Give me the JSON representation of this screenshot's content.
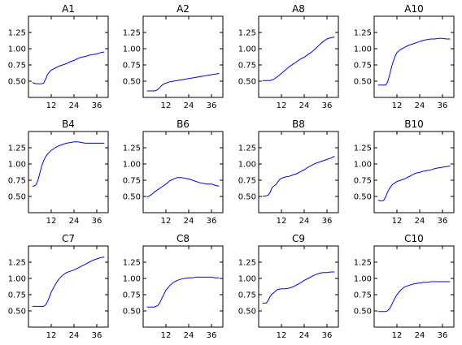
{
  "chart_data": [
    {
      "type": "line",
      "title": "A1",
      "xlim": [
        0,
        42
      ],
      "ylim": [
        0.25,
        1.5
      ],
      "xticks": [
        "12",
        "24",
        "36"
      ],
      "yticks": [
        "0.50",
        "0.75",
        "1.00",
        "1.25"
      ],
      "color": "#0000ff",
      "x": [
        2,
        4,
        6,
        7,
        8,
        9,
        10,
        11,
        12,
        14,
        16,
        18,
        20,
        22,
        24,
        26,
        28,
        30,
        32,
        34,
        36,
        38,
        40
      ],
      "y": [
        0.48,
        0.46,
        0.46,
        0.46,
        0.47,
        0.53,
        0.6,
        0.64,
        0.67,
        0.7,
        0.73,
        0.75,
        0.77,
        0.8,
        0.82,
        0.85,
        0.87,
        0.88,
        0.9,
        0.91,
        0.92,
        0.94,
        0.95
      ]
    },
    {
      "type": "line",
      "title": "A2",
      "xlim": [
        0,
        42
      ],
      "ylim": [
        0.25,
        1.5
      ],
      "xticks": [
        "12",
        "24",
        "36"
      ],
      "yticks": [
        "0.50",
        "0.75",
        "1.00",
        "1.25"
      ],
      "color": "#0000ff",
      "x": [
        2,
        4,
        6,
        7,
        8,
        9,
        10,
        11,
        12,
        14,
        16,
        18,
        20,
        22,
        24,
        26,
        28,
        30,
        32,
        34,
        36,
        38,
        40
      ],
      "y": [
        0.35,
        0.35,
        0.35,
        0.36,
        0.38,
        0.41,
        0.44,
        0.46,
        0.47,
        0.49,
        0.5,
        0.51,
        0.52,
        0.53,
        0.54,
        0.55,
        0.56,
        0.57,
        0.58,
        0.59,
        0.6,
        0.61,
        0.62
      ]
    },
    {
      "type": "line",
      "title": "A8",
      "xlim": [
        0,
        42
      ],
      "ylim": [
        0.25,
        1.5
      ],
      "xticks": [
        "12",
        "24",
        "36"
      ],
      "yticks": [
        "0.50",
        "0.75",
        "1.00",
        "1.25"
      ],
      "color": "#0000ff",
      "x": [
        2,
        4,
        6,
        8,
        10,
        12,
        14,
        16,
        18,
        20,
        22,
        24,
        26,
        28,
        30,
        32,
        34,
        36,
        38,
        40
      ],
      "y": [
        0.51,
        0.51,
        0.51,
        0.53,
        0.57,
        0.62,
        0.67,
        0.72,
        0.76,
        0.8,
        0.84,
        0.87,
        0.91,
        0.95,
        1.0,
        1.06,
        1.11,
        1.15,
        1.17,
        1.18
      ]
    },
    {
      "type": "line",
      "title": "A10",
      "xlim": [
        0,
        42
      ],
      "ylim": [
        0.25,
        1.5
      ],
      "xticks": [
        "12",
        "24",
        "36"
      ],
      "yticks": [
        "0.50",
        "0.75",
        "1.00",
        "1.25"
      ],
      "color": "#0000ff",
      "x": [
        2,
        4,
        6,
        7,
        8,
        9,
        10,
        11,
        12,
        14,
        16,
        18,
        20,
        22,
        24,
        26,
        28,
        30,
        32,
        34,
        36,
        38,
        40
      ],
      "y": [
        0.44,
        0.44,
        0.44,
        0.48,
        0.58,
        0.7,
        0.8,
        0.88,
        0.94,
        0.99,
        1.02,
        1.05,
        1.07,
        1.09,
        1.11,
        1.13,
        1.14,
        1.15,
        1.15,
        1.16,
        1.16,
        1.15,
        1.15
      ]
    },
    {
      "type": "line",
      "title": "B4",
      "xlim": [
        0,
        42
      ],
      "ylim": [
        0.25,
        1.5
      ],
      "xticks": [
        "12",
        "24",
        "36"
      ],
      "yticks": [
        "0.50",
        "0.75",
        "1.00",
        "1.25"
      ],
      "color": "#0000ff",
      "x": [
        2,
        3,
        4,
        5,
        6,
        7,
        8,
        9,
        10,
        12,
        14,
        16,
        18,
        20,
        22,
        24,
        26,
        28,
        30,
        32,
        34,
        36,
        38,
        40
      ],
      "y": [
        0.66,
        0.66,
        0.68,
        0.75,
        0.86,
        0.97,
        1.05,
        1.11,
        1.15,
        1.21,
        1.25,
        1.28,
        1.3,
        1.32,
        1.33,
        1.34,
        1.34,
        1.33,
        1.32,
        1.32,
        1.32,
        1.32,
        1.32,
        1.32
      ]
    },
    {
      "type": "line",
      "title": "B6",
      "xlim": [
        0,
        42
      ],
      "ylim": [
        0.25,
        1.5
      ],
      "xticks": [
        "12",
        "24",
        "36"
      ],
      "yticks": [
        "0.50",
        "0.75",
        "1.00",
        "1.25"
      ],
      "color": "#0000ff",
      "x": [
        2,
        4,
        6,
        8,
        10,
        12,
        14,
        16,
        18,
        20,
        22,
        24,
        26,
        28,
        30,
        32,
        34,
        36,
        38,
        40
      ],
      "y": [
        0.49,
        0.52,
        0.57,
        0.61,
        0.65,
        0.69,
        0.74,
        0.77,
        0.79,
        0.79,
        0.78,
        0.77,
        0.75,
        0.73,
        0.71,
        0.7,
        0.69,
        0.69,
        0.67,
        0.66
      ]
    },
    {
      "type": "line",
      "title": "B8",
      "xlim": [
        0,
        42
      ],
      "ylim": [
        0.25,
        1.5
      ],
      "xticks": [
        "12",
        "24",
        "36"
      ],
      "yticks": [
        "0.50",
        "0.75",
        "1.00",
        "1.25"
      ],
      "color": "#0000ff",
      "x": [
        2,
        4,
        5,
        6,
        7,
        8,
        9,
        10,
        11,
        12,
        14,
        16,
        18,
        20,
        22,
        24,
        26,
        28,
        30,
        32,
        34,
        36,
        38,
        40
      ],
      "y": [
        0.5,
        0.51,
        0.52,
        0.56,
        0.63,
        0.66,
        0.68,
        0.72,
        0.76,
        0.78,
        0.8,
        0.81,
        0.83,
        0.85,
        0.88,
        0.91,
        0.95,
        0.98,
        1.01,
        1.03,
        1.05,
        1.07,
        1.09,
        1.12
      ]
    },
    {
      "type": "line",
      "title": "B10",
      "xlim": [
        0,
        42
      ],
      "ylim": [
        0.25,
        1.5
      ],
      "xticks": [
        "12",
        "24",
        "36"
      ],
      "yticks": [
        "0.50",
        "0.75",
        "1.00",
        "1.25"
      ],
      "color": "#0000ff",
      "x": [
        2,
        4,
        5,
        6,
        7,
        8,
        9,
        10,
        11,
        12,
        14,
        16,
        18,
        20,
        22,
        24,
        26,
        28,
        30,
        32,
        34,
        36,
        38,
        40
      ],
      "y": [
        0.44,
        0.43,
        0.44,
        0.49,
        0.56,
        0.62,
        0.66,
        0.69,
        0.71,
        0.73,
        0.75,
        0.77,
        0.8,
        0.83,
        0.86,
        0.87,
        0.89,
        0.9,
        0.91,
        0.93,
        0.94,
        0.95,
        0.96,
        0.97
      ]
    },
    {
      "type": "line",
      "title": "C7",
      "xlim": [
        0,
        42
      ],
      "ylim": [
        0.25,
        1.5
      ],
      "xticks": [
        "12",
        "24",
        "36"
      ],
      "yticks": [
        "0.50",
        "0.75",
        "1.00",
        "1.25"
      ],
      "color": "#0000ff",
      "x": [
        2,
        4,
        6,
        8,
        9,
        10,
        11,
        12,
        14,
        16,
        18,
        20,
        22,
        24,
        26,
        28,
        30,
        32,
        34,
        36,
        38,
        40
      ],
      "y": [
        0.57,
        0.57,
        0.57,
        0.57,
        0.59,
        0.64,
        0.71,
        0.79,
        0.9,
        0.99,
        1.05,
        1.09,
        1.11,
        1.13,
        1.16,
        1.19,
        1.22,
        1.25,
        1.28,
        1.3,
        1.32,
        1.33
      ]
    },
    {
      "type": "line",
      "title": "C8",
      "xlim": [
        0,
        42
      ],
      "ylim": [
        0.25,
        1.5
      ],
      "xticks": [
        "12",
        "24",
        "36"
      ],
      "yticks": [
        "0.50",
        "0.75",
        "1.00",
        "1.25"
      ],
      "color": "#0000ff",
      "x": [
        2,
        4,
        6,
        8,
        9,
        10,
        11,
        12,
        14,
        16,
        18,
        20,
        22,
        24,
        26,
        28,
        30,
        32,
        34,
        36,
        38,
        40
      ],
      "y": [
        0.56,
        0.56,
        0.56,
        0.59,
        0.64,
        0.7,
        0.76,
        0.82,
        0.89,
        0.94,
        0.97,
        0.99,
        1.0,
        1.01,
        1.01,
        1.02,
        1.02,
        1.02,
        1.02,
        1.02,
        1.01,
        1.01
      ]
    },
    {
      "type": "line",
      "title": "C9",
      "xlim": [
        0,
        42
      ],
      "ylim": [
        0.25,
        1.5
      ],
      "xticks": [
        "12",
        "24",
        "36"
      ],
      "yticks": [
        "0.50",
        "0.75",
        "1.00",
        "1.25"
      ],
      "color": "#0000ff",
      "x": [
        2,
        4,
        5,
        6,
        7,
        8,
        9,
        10,
        12,
        14,
        16,
        18,
        20,
        22,
        24,
        26,
        28,
        30,
        32,
        34,
        36,
        38,
        40
      ],
      "y": [
        0.62,
        0.62,
        0.66,
        0.72,
        0.76,
        0.78,
        0.81,
        0.83,
        0.84,
        0.84,
        0.85,
        0.87,
        0.9,
        0.93,
        0.97,
        1.0,
        1.03,
        1.06,
        1.08,
        1.09,
        1.09,
        1.1,
        1.1
      ]
    },
    {
      "type": "line",
      "title": "C10",
      "xlim": [
        0,
        42
      ],
      "ylim": [
        0.25,
        1.5
      ],
      "xticks": [
        "12",
        "24",
        "36"
      ],
      "yticks": [
        "0.50",
        "0.75",
        "1.00",
        "1.25"
      ],
      "color": "#0000ff",
      "x": [
        2,
        4,
        6,
        7,
        8,
        9,
        10,
        11,
        12,
        14,
        16,
        18,
        20,
        22,
        24,
        26,
        28,
        30,
        32,
        34,
        36,
        38,
        40
      ],
      "y": [
        0.49,
        0.49,
        0.49,
        0.5,
        0.53,
        0.58,
        0.64,
        0.7,
        0.75,
        0.82,
        0.87,
        0.89,
        0.91,
        0.92,
        0.93,
        0.94,
        0.94,
        0.95,
        0.95,
        0.95,
        0.95,
        0.95,
        0.95
      ]
    }
  ]
}
